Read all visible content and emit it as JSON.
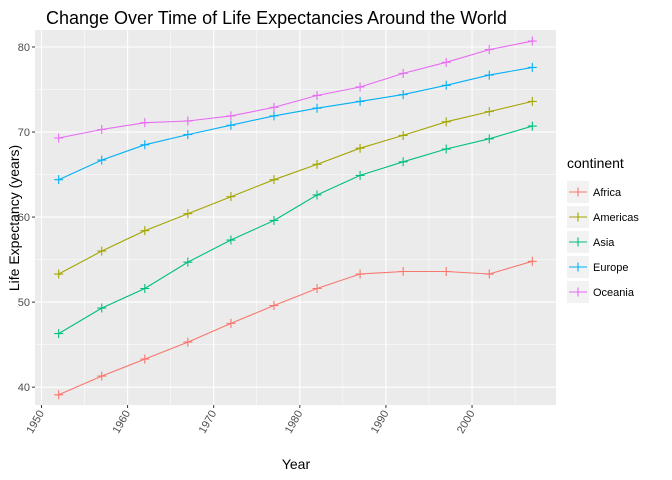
{
  "chart_data": {
    "type": "line",
    "title": "Change Over Time of Life Expectancies Around the World",
    "xlabel": "Year",
    "ylabel": "Life Expectancy (years)",
    "xlim": [
      1949.25,
      2009.75
    ],
    "ylim": [
      37.9,
      82.0
    ],
    "x_ticks": [
      1950,
      1960,
      1970,
      1980,
      1990,
      2000
    ],
    "y_ticks": [
      40,
      50,
      60,
      70,
      80
    ],
    "grid": true,
    "legend_title": "continent",
    "legend_position": "right",
    "x": [
      1952,
      1957,
      1962,
      1967,
      1972,
      1977,
      1982,
      1987,
      1992,
      1997,
      2002,
      2007
    ],
    "series": [
      {
        "name": "Africa",
        "color": "#F8766D",
        "values": [
          39.1,
          41.3,
          43.3,
          45.3,
          47.5,
          49.6,
          51.6,
          53.3,
          53.6,
          53.6,
          53.3,
          54.8
        ]
      },
      {
        "name": "Americas",
        "color": "#A3A500",
        "values": [
          53.3,
          56.0,
          58.4,
          60.4,
          62.4,
          64.4,
          66.2,
          68.1,
          69.6,
          71.2,
          72.4,
          73.6
        ]
      },
      {
        "name": "Asia",
        "color": "#00BF7D",
        "values": [
          46.3,
          49.3,
          51.6,
          54.7,
          57.3,
          59.6,
          62.6,
          64.9,
          66.5,
          68.0,
          69.2,
          70.7
        ]
      },
      {
        "name": "Europe",
        "color": "#00B0F6",
        "values": [
          64.4,
          66.7,
          68.5,
          69.7,
          70.8,
          71.9,
          72.8,
          73.6,
          74.4,
          75.5,
          76.7,
          77.6
        ]
      },
      {
        "name": "Oceania",
        "color": "#E76BF3",
        "values": [
          69.3,
          70.3,
          71.1,
          71.3,
          71.9,
          72.9,
          74.3,
          75.3,
          76.9,
          78.2,
          79.7,
          80.7
        ]
      }
    ]
  }
}
